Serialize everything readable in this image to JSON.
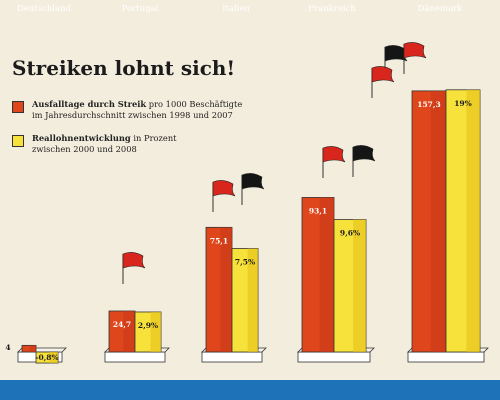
{
  "title": "Streiken lohnt sich!",
  "legend": [
    {
      "bold": "Ausfalltage durch Streik",
      "rest": " pro 1000 Beschäftigte",
      "line2": "im Jahresdurchschnitt zwischen 1998 und 2007",
      "color": "#e0461b"
    },
    {
      "bold": "Reallohnentwicklung",
      "rest": " in Prozent",
      "line2": "zwischen 2000 und 2008",
      "color": "#f6e23b"
    }
  ],
  "chart_data": {
    "type": "bar",
    "title": "Streiken lohnt sich!",
    "categories": [
      "Deutschland",
      "Portugal",
      "Italien",
      "Frankreich",
      "Dänemark"
    ],
    "series": [
      {
        "name": "Ausfalltage durch Streik pro 1000 Beschäftigte im Jahresdurchschnitt zwischen 1998 und 2007",
        "color": "#e0461b",
        "values": [
          4,
          24.7,
          75.1,
          93.1,
          157.3
        ],
        "labels": [
          "4",
          "24,7",
          "75,1",
          "93,1",
          "157,3"
        ]
      },
      {
        "name": "Reallohnentwicklung in Prozent zwischen 2000 und 2008",
        "color": "#f6e23b",
        "values": [
          -0.8,
          2.9,
          7.5,
          9.6,
          19
        ],
        "labels": [
          "-0,8%",
          "2,9%",
          "7,5%",
          "9,6%",
          "19%"
        ]
      }
    ]
  }
}
